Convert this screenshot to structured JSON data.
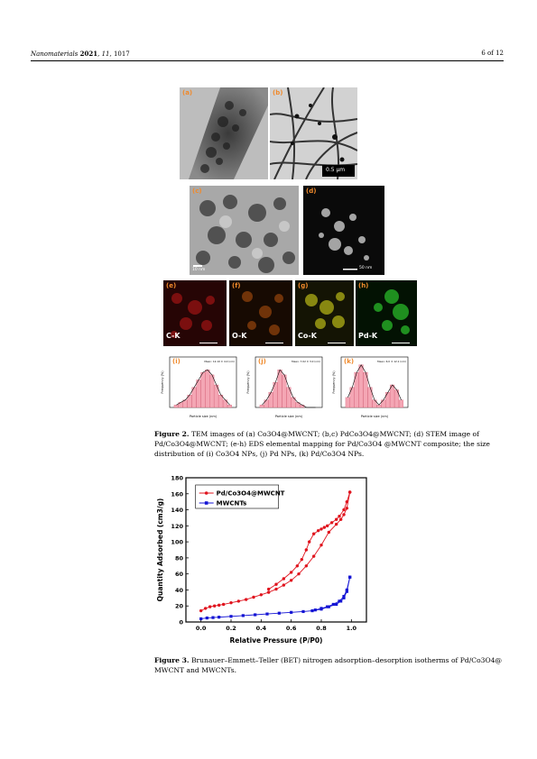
{
  "header": {
    "journal": "Nanomaterials",
    "year": "2021",
    "volume": "11",
    "article": "1017",
    "page": "6 of 12"
  },
  "figure2": {
    "panels": [
      {
        "label": "(a)",
        "scale": "",
        "caption": ""
      },
      {
        "label": "(b)",
        "scale": "0.5 μm"
      },
      {
        "label": "(c)",
        "scale": "10 nm"
      },
      {
        "label": "(d)",
        "scale": "50 nm"
      },
      {
        "label": "(e)",
        "element": "C-K",
        "scale": "50 nm",
        "color": "#d11e1e"
      },
      {
        "label": "(f)",
        "element": "O-K",
        "scale": "50 nm",
        "color": "#d46a12"
      },
      {
        "label": "(g)",
        "element": "Co-K",
        "scale": "50 nm",
        "color": "#e2e22a"
      },
      {
        "label": "(h)",
        "element": "Pd-K",
        "scale": "50 nm",
        "color": "#3ad43a"
      }
    ],
    "histograms": [
      {
        "label": "(i)",
        "mean": "Mean: 12.10 ± 4.0 (nm)",
        "ylabel": "Frequency (%)",
        "xlabel": "Particle size (nm)"
      },
      {
        "label": "(j)",
        "mean": "Mean: 7.02 ± 3.0 (nm)",
        "ylabel": "Frequency (%)",
        "xlabel": "Particle size (nm)"
      },
      {
        "label": "(k)",
        "mean": "Mean: 6.0 ± 12.1 (nm)",
        "ylabel": "Frequency (%)",
        "xlabel": "Particle size (nm)"
      }
    ],
    "caption_label": "Figure 2.",
    "caption_line1": "TEM images of (a) Co3O4@MWCNT; (b,c) PdCo3O4@MWCNT; (d) STEM image of",
    "caption_line2": "Pd/Co3O4@MWCNT; (e-h) EDS elemental mapping for Pd/Co3O4 @MWCNT composite; the size",
    "caption_line3": "distribution of (i) Co3O4 NPs, (j) Pd NPs, (k) Pd/Co3O4 NPs."
  },
  "figure3": {
    "caption_label": "Figure 3.",
    "caption_line1": "Brunauer–Emmett–Teller (BET) nitrogen adsorption–desorption isotherms of Pd/Co3O4@",
    "caption_line2": "MWCNT and MWCNTs."
  },
  "chart_data": {
    "type": "line",
    "xlabel": "Relative Pressure (P/P0)",
    "ylabel": "Quantity Adsorbed (cm3/g)",
    "xlim": [
      -0.1,
      1.1
    ],
    "ylim": [
      0,
      180
    ],
    "xticks": [
      "0.0",
      "0.2",
      "0.4",
      "0.6",
      "0.8",
      "1.0"
    ],
    "yticks": [
      "0",
      "20",
      "40",
      "60",
      "80",
      "100",
      "120",
      "140",
      "160",
      "180"
    ],
    "legend_position": "top-left",
    "series": [
      {
        "name": "Pd/Co3O4@MWCNT",
        "color": "#e0141e",
        "marker": "circle",
        "adsorption": [
          [
            0.0,
            14
          ],
          [
            0.03,
            17
          ],
          [
            0.06,
            19
          ],
          [
            0.09,
            20
          ],
          [
            0.12,
            21
          ],
          [
            0.15,
            22
          ],
          [
            0.2,
            24
          ],
          [
            0.25,
            26
          ],
          [
            0.3,
            28
          ],
          [
            0.35,
            31
          ],
          [
            0.4,
            34
          ],
          [
            0.45,
            37
          ],
          [
            0.5,
            41
          ],
          [
            0.55,
            46
          ],
          [
            0.6,
            52
          ],
          [
            0.65,
            60
          ],
          [
            0.7,
            70
          ],
          [
            0.75,
            82
          ],
          [
            0.8,
            96
          ],
          [
            0.85,
            112
          ],
          [
            0.9,
            122
          ],
          [
            0.93,
            128
          ],
          [
            0.95,
            134
          ],
          [
            0.97,
            142
          ],
          [
            0.99,
            162
          ]
        ],
        "desorption": [
          [
            0.99,
            162
          ],
          [
            0.97,
            150
          ],
          [
            0.95,
            140
          ],
          [
            0.92,
            132
          ],
          [
            0.9,
            128
          ],
          [
            0.87,
            124
          ],
          [
            0.84,
            120
          ],
          [
            0.82,
            118
          ],
          [
            0.8,
            116
          ],
          [
            0.78,
            114
          ],
          [
            0.75,
            110
          ],
          [
            0.72,
            100
          ],
          [
            0.7,
            90
          ],
          [
            0.67,
            78
          ],
          [
            0.64,
            70
          ],
          [
            0.6,
            62
          ],
          [
            0.55,
            54
          ],
          [
            0.5,
            47
          ],
          [
            0.45,
            41
          ]
        ]
      },
      {
        "name": "MWCNTs",
        "color": "#1414d4",
        "marker": "square",
        "adsorption": [
          [
            0.0,
            4
          ],
          [
            0.04,
            5
          ],
          [
            0.08,
            5.5
          ],
          [
            0.12,
            6
          ],
          [
            0.2,
            7
          ],
          [
            0.28,
            8
          ],
          [
            0.36,
            9
          ],
          [
            0.44,
            10
          ],
          [
            0.52,
            11
          ],
          [
            0.6,
            12
          ],
          [
            0.68,
            13
          ],
          [
            0.74,
            14
          ],
          [
            0.8,
            16
          ],
          [
            0.85,
            19
          ],
          [
            0.9,
            22
          ],
          [
            0.93,
            26
          ],
          [
            0.95,
            30
          ],
          [
            0.97,
            38
          ],
          [
            0.99,
            56
          ]
        ],
        "desorption": [
          [
            0.99,
            56
          ],
          [
            0.97,
            40
          ],
          [
            0.95,
            32
          ],
          [
            0.92,
            26
          ],
          [
            0.88,
            22
          ],
          [
            0.84,
            19
          ],
          [
            0.8,
            17
          ],
          [
            0.76,
            15
          ]
        ]
      }
    ]
  }
}
